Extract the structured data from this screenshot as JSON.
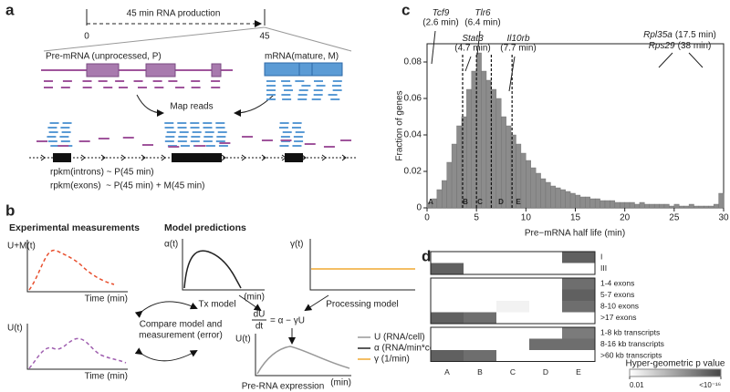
{
  "panel_labels": [
    "a",
    "b",
    "c",
    "d"
  ],
  "panel_a": {
    "timeline": "45 min RNA production",
    "start": "0",
    "end": "45",
    "pre_mrna": "Pre-mRNA (unprocessed, P)",
    "mrna": "mRNA(mature, M)",
    "map_reads": "Map reads",
    "introns": "rpkm(introns) ~ P(45 min)",
    "exons": "rpkm(exons)  ~ P(45 min) + M(45 min)"
  },
  "panel_b": {
    "experimental": "Experimental measurements",
    "model": "Model predictions",
    "um_axis": "U+M(t)",
    "time1": "Time (min)",
    "alpha_axis": "α(t)",
    "min1": "(min)",
    "tx_model": "Tx model",
    "gamma_axis": "γ(t)",
    "processing_model": "Processing model",
    "u_axis1": "U(t)",
    "time2": "Time (min)",
    "compare1": "Compare model and",
    "compare2": "measurement (error)",
    "eq_num": "dU",
    "eq_den": "dt",
    "eq_rhs": "= α − γU",
    "u_axis2": "U(t)",
    "min2": "(min)",
    "expression": "Pre-RNA expression",
    "legend": [
      {
        "name": "U (RNA/cell)",
        "color": "#999999"
      },
      {
        "name": "α (RNA/min*cell)",
        "color": "#222222"
      },
      {
        "name": "γ (1/min)",
        "color": "#f0a830"
      }
    ]
  },
  "chart_data": {
    "type": "histogram",
    "xlabel": "Pre−mRNA half life (min)",
    "ylabel": "Fraction of genes",
    "bins": [
      0,
      0.5,
      1,
      1.5,
      2,
      2.5,
      3,
      3.5,
      4,
      4.5,
      5,
      5.5,
      6,
      6.5,
      7,
      7.5,
      8,
      8.5,
      9,
      9.5,
      10,
      10.5,
      11,
      11.5,
      12,
      12.5,
      13,
      13.5,
      14,
      14.5,
      15,
      15.5,
      16,
      16.5,
      17,
      17.5,
      18,
      18.5,
      19,
      19.5,
      20,
      20.5,
      21,
      21.5,
      22,
      22.5,
      23,
      23.5,
      24,
      24.5,
      25,
      25.5,
      26,
      26.5,
      27,
      27.5,
      28,
      28.5,
      29,
      29.5,
      30
    ],
    "values": [
      0.003,
      0.005,
      0.01,
      0.015,
      0.025,
      0.035,
      0.045,
      0.05,
      0.065,
      0.075,
      0.085,
      0.075,
      0.07,
      0.065,
      0.06,
      0.05,
      0.045,
      0.04,
      0.035,
      0.03,
      0.026,
      0.022,
      0.019,
      0.016,
      0.014,
      0.012,
      0.011,
      0.01,
      0.009,
      0.008,
      0.007,
      0.006,
      0.006,
      0.005,
      0.005,
      0.004,
      0.004,
      0.004,
      0.003,
      0.003,
      0.003,
      0.003,
      0.002,
      0.003,
      0.002,
      0.002,
      0.002,
      0.002,
      0.002,
      0.001,
      0.002,
      0.001,
      0.001,
      0.002,
      0.001,
      0.001,
      0.001,
      0.001,
      0.002,
      0.008
    ],
    "color": "#8c8c8c",
    "xlim": [
      0,
      30
    ],
    "ylim": [
      0,
      0.09
    ],
    "xticks": [
      0,
      5,
      10,
      15,
      20,
      25,
      30
    ],
    "yticks": [
      0,
      0.02,
      0.04,
      0.06,
      0.08
    ],
    "dividers": [
      3.6,
      5.0,
      6.5,
      8.6
    ],
    "group_labels": [
      "A",
      "B",
      "C",
      "D",
      "E"
    ],
    "annotations": [
      {
        "gene": "Tcf9",
        "half_life": "(2.6 min)"
      },
      {
        "gene": "Stat3",
        "half_life": "(4.7 min)"
      },
      {
        "gene": "Tlr6",
        "half_life": "(6.4 min)"
      },
      {
        "gene": "Il10rb",
        "half_life": "(7.7 min)"
      },
      {
        "gene": "Rpl35a",
        "half_life": "(17.5 min)"
      },
      {
        "gene": "Rps29",
        "half_life": "(38 min)"
      }
    ]
  },
  "panel_d": {
    "columns": [
      "A",
      "B",
      "C",
      "D",
      "E"
    ],
    "groups": [
      {
        "rows": [
          {
            "label": "I",
            "values": [
              2,
              2,
              2,
              2,
              14
            ]
          },
          {
            "label": "III",
            "values": [
              14,
              2,
              2,
              2,
              2
            ]
          }
        ]
      },
      {
        "rows": [
          {
            "label": "1-4 exons",
            "values": [
              2,
              2,
              2,
              2,
              13
            ]
          },
          {
            "label": "5-7 exons",
            "values": [
              2,
              2,
              2,
              2,
              14
            ]
          },
          {
            "label": "8-10 exons",
            "values": [
              2,
              2,
              3,
              2,
              13
            ]
          },
          {
            "label": ">17 exons",
            "values": [
              14,
              13,
              2,
              2,
              2
            ]
          }
        ]
      },
      {
        "rows": [
          {
            "label": "1-8 kb transcripts",
            "values": [
              2,
              2,
              2,
              2,
              12
            ]
          },
          {
            "label": "8-16 kb transcripts",
            "values": [
              2,
              2,
              2,
              13,
              13
            ]
          },
          {
            "label": ">60 kb transcripts",
            "values": [
              14,
              13,
              2,
              2,
              2
            ]
          }
        ]
      }
    ],
    "legend_title": "Hyper-geometric p value",
    "legend_ticks": [
      {
        "value": 2,
        "label": "0.01"
      },
      {
        "value": 16,
        "label": "<10⁻¹⁶"
      }
    ]
  }
}
